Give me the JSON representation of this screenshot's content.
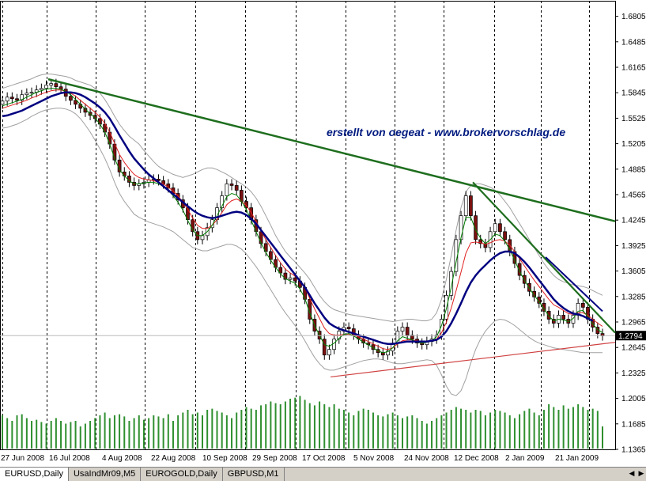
{
  "window": {
    "title": "EURUSD,Daily"
  },
  "chart_data": {
    "type": "candlestick",
    "symbol": "EURUSD",
    "timeframe": "Daily",
    "annotation": "erstellt von oegeat  -  www.brokervorschlag.de",
    "current_price": "1.2794",
    "ylim": [
      1.1365,
      1.7
    ],
    "y_ticks": [
      "1.6805",
      "1.6485",
      "1.6165",
      "1.5845",
      "1.5525",
      "1.5205",
      "1.4885",
      "1.4565",
      "1.4245",
      "1.3925",
      "1.3605",
      "1.3285",
      "1.2965",
      "1.2645",
      "1.2325",
      "1.2005",
      "1.1685",
      "1.1365"
    ],
    "x_ticks": [
      "27 Jun 2008",
      "16 Jul 2008",
      "4 Aug 2008",
      "22 Aug 2008",
      "10 Sep 2008",
      "29 Sep 2008",
      "17 Oct 2008",
      "5 Nov 2008",
      "24 Nov 2008",
      "12 Dec 2008",
      "2 Jan 2009",
      "21 Jan 2009"
    ],
    "close": [
      1.574,
      1.579,
      1.577,
      1.575,
      1.582,
      1.584,
      1.585,
      1.588,
      1.59,
      1.594,
      1.596,
      1.592,
      1.589,
      1.58,
      1.575,
      1.57,
      1.565,
      1.56,
      1.556,
      1.552,
      1.545,
      1.535,
      1.52,
      1.5,
      1.485,
      1.48,
      1.472,
      1.468,
      1.47,
      1.472,
      1.475,
      1.476,
      1.474,
      1.47,
      1.465,
      1.458,
      1.45,
      1.44,
      1.425,
      1.41,
      1.4,
      1.405,
      1.415,
      1.425,
      1.44,
      1.455,
      1.47,
      1.468,
      1.462,
      1.448,
      1.44,
      1.425,
      1.41,
      1.395,
      1.385,
      1.375,
      1.365,
      1.358,
      1.35,
      1.352,
      1.348,
      1.34,
      1.325,
      1.3,
      1.285,
      1.275,
      1.255,
      1.262,
      1.275,
      1.285,
      1.29,
      1.288,
      1.28,
      1.275,
      1.27,
      1.268,
      1.262,
      1.258,
      1.255,
      1.26,
      1.27,
      1.285,
      1.29,
      1.28,
      1.275,
      1.27,
      1.268,
      1.272,
      1.275,
      1.28,
      1.3,
      1.33,
      1.36,
      1.4,
      1.43,
      1.455,
      1.43,
      1.4,
      1.395,
      1.39,
      1.41,
      1.42,
      1.41,
      1.4,
      1.385,
      1.37,
      1.355,
      1.345,
      1.335,
      1.328,
      1.32,
      1.31,
      1.3,
      1.295,
      1.305,
      1.3,
      1.295,
      1.305,
      1.32,
      1.315,
      1.3,
      1.29,
      1.282,
      1.279
    ],
    "ma_green": [
      1.568,
      1.57,
      1.572,
      1.574,
      1.576,
      1.579,
      1.582,
      1.585,
      1.587,
      1.589,
      1.59,
      1.59,
      1.589,
      1.586,
      1.582,
      1.576,
      1.57,
      1.564,
      1.558,
      1.553,
      1.545,
      1.535,
      1.52,
      1.502,
      1.488,
      1.48,
      1.474,
      1.47,
      1.47,
      1.471,
      1.472,
      1.472,
      1.47,
      1.467,
      1.462,
      1.455,
      1.447,
      1.437,
      1.424,
      1.412,
      1.405,
      1.405,
      1.41,
      1.418,
      1.43,
      1.442,
      1.454,
      1.458,
      1.456,
      1.448,
      1.438,
      1.424,
      1.41,
      1.396,
      1.384,
      1.374,
      1.365,
      1.357,
      1.351,
      1.348,
      1.345,
      1.338,
      1.326,
      1.308,
      1.292,
      1.28,
      1.268,
      1.266,
      1.27,
      1.276,
      1.281,
      1.282,
      1.279,
      1.275,
      1.271,
      1.268,
      1.264,
      1.26,
      1.258,
      1.259,
      1.264,
      1.273,
      1.278,
      1.276,
      1.274,
      1.271,
      1.27,
      1.271,
      1.273,
      1.278,
      1.292,
      1.313,
      1.34,
      1.372,
      1.402,
      1.428,
      1.428,
      1.412,
      1.402,
      1.395,
      1.4,
      1.407,
      1.405,
      1.398,
      1.387,
      1.374,
      1.36,
      1.349,
      1.339,
      1.33,
      1.322,
      1.313,
      1.304,
      1.298,
      1.3,
      1.299,
      1.297,
      1.301,
      1.31,
      1.311,
      1.303,
      1.294,
      1.287,
      1.283
    ],
    "ma_red": [
      1.565,
      1.567,
      1.569,
      1.571,
      1.573,
      1.575,
      1.578,
      1.58,
      1.583,
      1.585,
      1.587,
      1.588,
      1.588,
      1.586,
      1.584,
      1.58,
      1.575,
      1.57,
      1.565,
      1.56,
      1.554,
      1.546,
      1.535,
      1.521,
      1.507,
      1.497,
      1.489,
      1.482,
      1.478,
      1.476,
      1.475,
      1.474,
      1.472,
      1.47,
      1.466,
      1.461,
      1.455,
      1.447,
      1.438,
      1.427,
      1.418,
      1.414,
      1.414,
      1.418,
      1.425,
      1.434,
      1.444,
      1.449,
      1.451,
      1.448,
      1.443,
      1.434,
      1.423,
      1.411,
      1.4,
      1.39,
      1.38,
      1.371,
      1.363,
      1.358,
      1.354,
      1.348,
      1.339,
      1.326,
      1.313,
      1.301,
      1.289,
      1.282,
      1.28,
      1.28,
      1.281,
      1.281,
      1.28,
      1.278,
      1.275,
      1.272,
      1.269,
      1.266,
      1.263,
      1.262,
      1.264,
      1.269,
      1.273,
      1.274,
      1.274,
      1.273,
      1.272,
      1.272,
      1.273,
      1.275,
      1.283,
      1.296,
      1.314,
      1.336,
      1.359,
      1.383,
      1.396,
      1.397,
      1.396,
      1.394,
      1.396,
      1.399,
      1.4,
      1.398,
      1.393,
      1.385,
      1.376,
      1.367,
      1.358,
      1.349,
      1.341,
      1.333,
      1.325,
      1.318,
      1.315,
      1.311,
      1.307,
      1.306,
      1.308,
      1.308,
      1.305,
      1.3,
      1.295,
      1.291
    ],
    "ma_blue": [
      1.555,
      1.556,
      1.558,
      1.56,
      1.562,
      1.565,
      1.568,
      1.571,
      1.574,
      1.577,
      1.58,
      1.582,
      1.584,
      1.585,
      1.585,
      1.584,
      1.582,
      1.579,
      1.575,
      1.571,
      1.566,
      1.56,
      1.552,
      1.542,
      1.531,
      1.521,
      1.511,
      1.502,
      1.495,
      1.488,
      1.482,
      1.477,
      1.472,
      1.467,
      1.462,
      1.457,
      1.452,
      1.447,
      1.442,
      1.437,
      1.433,
      1.43,
      1.428,
      1.427,
      1.428,
      1.43,
      1.432,
      1.434,
      1.435,
      1.434,
      1.431,
      1.426,
      1.42,
      1.412,
      1.404,
      1.396,
      1.388,
      1.38,
      1.372,
      1.364,
      1.356,
      1.348,
      1.34,
      1.33,
      1.32,
      1.311,
      1.302,
      1.295,
      1.291,
      1.288,
      1.286,
      1.284,
      1.282,
      1.28,
      1.278,
      1.276,
      1.274,
      1.272,
      1.27,
      1.269,
      1.269,
      1.27,
      1.271,
      1.272,
      1.272,
      1.272,
      1.272,
      1.272,
      1.273,
      1.274,
      1.278,
      1.285,
      1.295,
      1.307,
      1.32,
      1.334,
      1.346,
      1.355,
      1.362,
      1.368,
      1.374,
      1.379,
      1.383,
      1.385,
      1.385,
      1.383,
      1.378,
      1.372,
      1.365,
      1.357,
      1.349,
      1.341,
      1.333,
      1.325,
      1.319,
      1.314,
      1.31,
      1.307,
      1.306,
      1.304,
      1.301,
      1.298
    ],
    "bb_upper": [
      1.59,
      1.592,
      1.594,
      1.596,
      1.598,
      1.6,
      1.602,
      1.605,
      1.607,
      1.608,
      1.608,
      1.607,
      1.606,
      1.605,
      1.603,
      1.6,
      1.598,
      1.596,
      1.594,
      1.59,
      1.584,
      1.576,
      1.566,
      1.555,
      1.545,
      1.537,
      1.53,
      1.525,
      1.52,
      1.512,
      1.505,
      1.498,
      1.492,
      1.488,
      1.485,
      1.482,
      1.48,
      1.478,
      1.48,
      1.482,
      1.485,
      1.488,
      1.49,
      1.49,
      1.488,
      1.485,
      1.482,
      1.478,
      1.474,
      1.47,
      1.466,
      1.46,
      1.452,
      1.442,
      1.43,
      1.418,
      1.405,
      1.395,
      1.385,
      1.378,
      1.372,
      1.365,
      1.358,
      1.35,
      1.34,
      1.33,
      1.322,
      1.316,
      1.312,
      1.31,
      1.308,
      1.306,
      1.305,
      1.304,
      1.303,
      1.302,
      1.301,
      1.3,
      1.299,
      1.298,
      1.297,
      1.298,
      1.299,
      1.3,
      1.3,
      1.299,
      1.298,
      1.298,
      1.3,
      1.308,
      1.325,
      1.35,
      1.38,
      1.412,
      1.44,
      1.46,
      1.468,
      1.47,
      1.47,
      1.468,
      1.466,
      1.462,
      1.456,
      1.448,
      1.44,
      1.43,
      1.42,
      1.41,
      1.4,
      1.39,
      1.38,
      1.37,
      1.362,
      1.355,
      1.35,
      1.347,
      1.345,
      1.343,
      1.342,
      1.341,
      1.339,
      1.336,
      1.333,
      1.33
    ],
    "bb_lower": [
      1.54,
      1.541,
      1.543,
      1.545,
      1.548,
      1.551,
      1.555,
      1.558,
      1.561,
      1.563,
      1.564,
      1.565,
      1.565,
      1.564,
      1.562,
      1.558,
      1.552,
      1.544,
      1.535,
      1.525,
      1.514,
      1.502,
      1.488,
      1.472,
      1.458,
      1.448,
      1.44,
      1.432,
      1.428,
      1.425,
      1.422,
      1.42,
      1.418,
      1.416,
      1.413,
      1.41,
      1.405,
      1.4,
      1.395,
      1.39,
      1.388,
      1.386,
      1.386,
      1.388,
      1.39,
      1.392,
      1.394,
      1.394,
      1.392,
      1.388,
      1.382,
      1.374,
      1.366,
      1.357,
      1.347,
      1.337,
      1.327,
      1.317,
      1.308,
      1.3,
      1.292,
      1.283,
      1.273,
      1.262,
      1.252,
      1.244,
      1.238,
      1.236,
      1.236,
      1.238,
      1.24,
      1.242,
      1.244,
      1.246,
      1.248,
      1.249,
      1.25,
      1.25,
      1.249,
      1.247,
      1.245,
      1.244,
      1.244,
      1.245,
      1.246,
      1.247,
      1.248,
      1.249,
      1.248,
      1.242,
      1.23,
      1.216,
      1.206,
      1.204,
      1.21,
      1.225,
      1.245,
      1.262,
      1.275,
      1.285,
      1.292,
      1.298,
      1.3,
      1.299,
      1.296,
      1.292,
      1.287,
      1.282,
      1.277,
      1.273,
      1.27,
      1.268,
      1.266,
      1.264,
      1.263,
      1.262,
      1.261,
      1.26,
      1.259,
      1.258,
      1.258,
      1.258,
      1.258,
      1.258
    ],
    "volume": [
      0.6,
      0.55,
      0.5,
      0.6,
      0.62,
      0.55,
      0.5,
      0.52,
      0.48,
      0.45,
      0.5,
      0.55,
      0.5,
      0.45,
      0.48,
      0.5,
      0.4,
      0.45,
      0.5,
      0.55,
      0.6,
      0.65,
      0.55,
      0.6,
      0.62,
      0.58,
      0.5,
      0.55,
      0.6,
      0.52,
      0.55,
      0.6,
      0.58,
      0.55,
      0.62,
      0.5,
      0.6,
      0.65,
      0.7,
      0.62,
      0.65,
      0.6,
      0.7,
      0.72,
      0.68,
      0.65,
      0.6,
      0.55,
      0.65,
      0.7,
      0.75,
      0.72,
      0.7,
      0.78,
      0.8,
      0.85,
      0.82,
      0.8,
      0.85,
      0.9,
      0.92,
      0.95,
      0.88,
      0.82,
      0.78,
      0.85,
      0.8,
      0.75,
      0.8,
      0.72,
      0.7,
      0.65,
      0.6,
      0.68,
      0.72,
      0.7,
      0.65,
      0.6,
      0.58,
      0.62,
      0.65,
      0.6,
      0.55,
      0.58,
      0.6,
      0.55,
      0.5,
      0.45,
      0.5,
      0.55,
      0.6,
      0.65,
      0.7,
      0.75,
      0.72,
      0.7,
      0.65,
      0.7,
      0.68,
      0.6,
      0.65,
      0.7,
      0.68,
      0.65,
      0.6,
      0.55,
      0.62,
      0.68,
      0.72,
      0.65,
      0.6,
      0.7,
      0.8,
      0.75,
      0.7,
      0.78,
      0.72,
      0.75,
      0.8,
      0.75,
      0.7,
      0.72,
      0.68,
      0.4
    ],
    "trendlines": {
      "upper_resistance": [
        [
          1.6015,
          1.423
        ]
      ],
      "lower_support": [
        [
          1.2275,
          1.271
        ]
      ],
      "down_green": [
        [
          1.472,
          1.283
        ]
      ],
      "down_blue": [
        [
          1.378,
          1.31
        ]
      ]
    }
  },
  "tabs": [
    {
      "label": "EURUSD,Daily",
      "active": true
    },
    {
      "label": "UsaIndMr09,M5",
      "active": false
    },
    {
      "label": "EUROGOLD,Daily",
      "active": false
    },
    {
      "label": "GBPUSD,M1",
      "active": false
    }
  ],
  "colors": {
    "bull": "#333333",
    "bear": "#7a1010",
    "ma_green": "#008000",
    "ma_red": "#e02020",
    "ma_blue": "#000080",
    "bands": "#a0a0a0",
    "trend_dark_green": "#1e6e1e",
    "trend_red": "#d04040",
    "volume": "#2f8f2f",
    "annotation": "#001a80"
  }
}
